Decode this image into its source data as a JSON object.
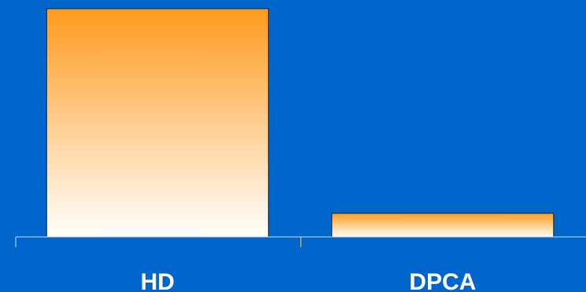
{
  "chart_data": {
    "type": "bar",
    "categories": [
      "HD",
      "DPCA"
    ],
    "values": [
      29,
      3
    ],
    "ylim": [
      0,
      30
    ],
    "title": "",
    "xlabel": "",
    "ylabel": "",
    "grid": false,
    "legend": "none",
    "colors": {
      "background": "#0066cc",
      "bar_top": "#ff9a1e",
      "bar_bottom": "#ffffff",
      "bar_outline": "#1a1a1a",
      "axis": "#c8d8f0",
      "label": "#ffffff"
    }
  }
}
